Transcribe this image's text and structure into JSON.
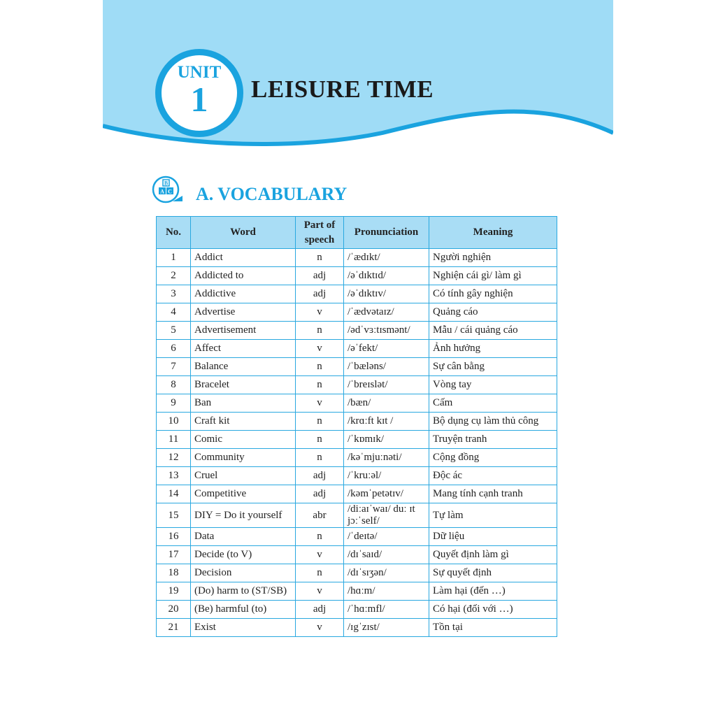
{
  "header": {
    "unit_label": "UNIT",
    "unit_number": "1",
    "title": "LEISURE TIME"
  },
  "section": {
    "icon": "abc-blocks-icon",
    "title": "A. VOCABULARY"
  },
  "colors": {
    "accent": "#1aa3df",
    "banner": "#9fdcf6",
    "table_header": "#a9ddf5"
  },
  "table": {
    "headers": [
      "No.",
      "Word",
      "Part of speech",
      "Pronunciation",
      "Meaning"
    ],
    "rows": [
      [
        "1",
        "Addict",
        "n",
        "/ˈædɪkt/",
        "Người nghiện"
      ],
      [
        "2",
        "Addicted to",
        "adj",
        "/əˈdɪktɪd/",
        "Nghiện cái gì/ làm gì"
      ],
      [
        "3",
        "Addictive",
        "adj",
        "/əˈdɪktɪv/",
        "Có tính gây nghiện"
      ],
      [
        "4",
        "Advertise",
        "v",
        "/ˈædvətaɪz/",
        "Quảng cáo"
      ],
      [
        "5",
        "Advertisement",
        "n",
        "/ədˈvɜːtɪsmənt/",
        "Mẫu / cái quảng cáo"
      ],
      [
        "6",
        "Affect",
        "v",
        "/əˈfekt/",
        "Ảnh hưởng"
      ],
      [
        "7",
        "Balance",
        "n",
        "/ˈbæləns/",
        "Sự cân bằng"
      ],
      [
        "8",
        "Bracelet",
        "n",
        "/ˈbreɪslət/",
        "Vòng tay"
      ],
      [
        "9",
        "Ban",
        "v",
        "/bæn/",
        "Cấm"
      ],
      [
        "10",
        "Craft kit",
        "n",
        "/krɑːft kɪt /",
        "Bộ dụng cụ làm thủ công"
      ],
      [
        "11",
        "Comic",
        "n",
        "/ˈkɒmɪk/",
        "Truyện tranh"
      ],
      [
        "12",
        "Community",
        "n",
        "/kəˈmjuːnəti/",
        "Cộng đồng"
      ],
      [
        "13",
        "Cruel",
        "adj",
        "/ˈkruːəl/",
        "Độc ác"
      ],
      [
        "14",
        "Competitive",
        "adj",
        "/kəmˈpetətɪv/",
        "Mang tính cạnh tranh"
      ],
      [
        "15",
        "DIY = Do it yourself",
        "abr",
        "/diːaɪˈwaɪ/ duː ɪt jɔːˈself/",
        "Tự làm"
      ],
      [
        "16",
        "Data",
        "n",
        "/ˈdeɪtə/",
        "Dữ liệu"
      ],
      [
        "17",
        "Decide (to V)",
        "v",
        "/dɪˈsaɪd/",
        "Quyết định làm gì"
      ],
      [
        "18",
        "Decision",
        "n",
        "/dɪˈsɪʒən/",
        "Sự quyết định"
      ],
      [
        "19",
        "(Do) harm to (ST/SB)",
        "v",
        "/hɑːm/",
        "Làm hại (đến …)"
      ],
      [
        "20",
        "(Be) harmful  (to)",
        "adj",
        "/ˈhɑːmfl/",
        "Có hại (đối với …)"
      ],
      [
        "21",
        "Exist",
        "v",
        "/ɪgˈzɪst/",
        "Tồn tại"
      ]
    ]
  }
}
